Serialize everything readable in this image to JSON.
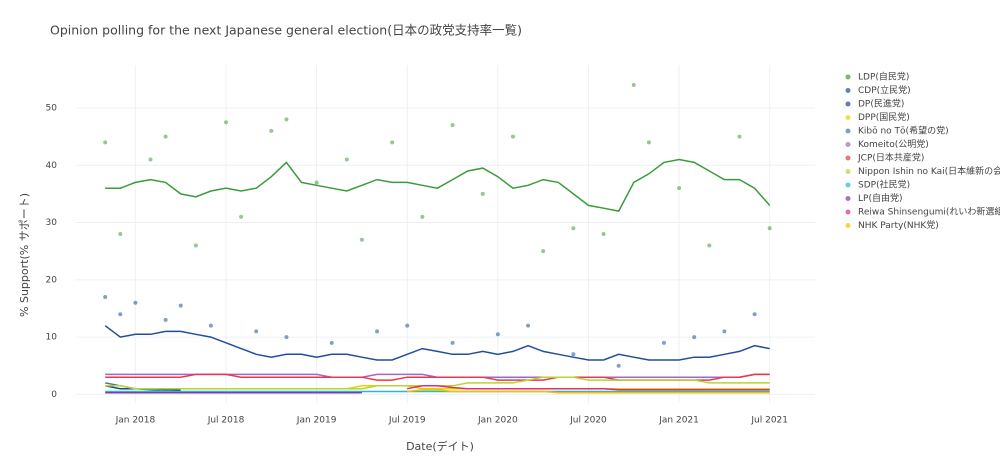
{
  "chart_data": {
    "type": "line",
    "title": "Opinion polling for the next Japanese general election(日本の政党支持率一覧)",
    "x_label": "Date(デイト)",
    "y_label": "% Support(% サポート)",
    "xlim": [
      "2017-09",
      "2021-10"
    ],
    "xticks": [
      {
        "value": "2018-01",
        "label": "Jan 2018"
      },
      {
        "value": "2018-07",
        "label": "Jul 2018"
      },
      {
        "value": "2019-01",
        "label": "Jan 2019"
      },
      {
        "value": "2019-07",
        "label": "Jul 2019"
      },
      {
        "value": "2020-01",
        "label": "Jan 2020"
      },
      {
        "value": "2020-07",
        "label": "Jul 2020"
      },
      {
        "value": "2021-01",
        "label": "Jan 2021"
      },
      {
        "value": "2021-07",
        "label": "Jul 2021"
      }
    ],
    "ylim": [
      -1.5,
      57.5
    ],
    "yticks": [
      0,
      10,
      20,
      30,
      40,
      50
    ],
    "grid": true,
    "legend": "right",
    "x": [
      "2017-11",
      "2017-12",
      "2018-01",
      "2018-02",
      "2018-03",
      "2018-04",
      "2018-05",
      "2018-06",
      "2018-07",
      "2018-08",
      "2018-09",
      "2018-10",
      "2018-11",
      "2018-12",
      "2019-01",
      "2019-02",
      "2019-03",
      "2019-04",
      "2019-05",
      "2019-06",
      "2019-07",
      "2019-08",
      "2019-09",
      "2019-10",
      "2019-11",
      "2019-12",
      "2020-01",
      "2020-02",
      "2020-03",
      "2020-04",
      "2020-05",
      "2020-06",
      "2020-07",
      "2020-08",
      "2020-09",
      "2020-10",
      "2020-11",
      "2020-12",
      "2021-01",
      "2021-02",
      "2021-03",
      "2021-04",
      "2021-05",
      "2021-06",
      "2021-07"
    ],
    "series": [
      {
        "name": "LDP(自民党)",
        "color": "#3a9b3a",
        "values": [
          36,
          36,
          37,
          37.5,
          37,
          35,
          34.5,
          35.5,
          36,
          35.5,
          36,
          38,
          40.5,
          37,
          36.5,
          36,
          35.5,
          36.5,
          37.5,
          37,
          37,
          36.5,
          36,
          37.5,
          39,
          39.5,
          38,
          36,
          36.5,
          37.5,
          37,
          35,
          33,
          32.5,
          32,
          37,
          38.5,
          40.5,
          41,
          40.5,
          39,
          37.5,
          37.5,
          36,
          33
        ],
        "points_x": [
          "2017-11",
          "2017-12",
          "2018-02",
          "2018-03",
          "2018-05",
          "2018-07",
          "2018-08",
          "2018-10",
          "2018-11",
          "2019-01",
          "2019-03",
          "2019-04",
          "2019-06",
          "2019-08",
          "2019-10",
          "2019-12",
          "2020-02",
          "2020-04",
          "2020-06",
          "2020-08",
          "2020-10",
          "2020-11",
          "2021-01",
          "2021-03",
          "2021-05",
          "2021-07"
        ],
        "points": [
          44,
          28,
          41,
          45,
          26,
          47.5,
          31,
          46,
          48,
          37,
          41,
          27,
          44,
          31,
          47,
          35,
          45,
          25,
          29,
          28,
          54,
          44,
          36,
          26,
          45,
          29
        ]
      },
      {
        "name": "CDP(立民党)",
        "color": "#1f4e9c",
        "values": [
          12,
          10,
          10.5,
          10.5,
          11,
          11,
          10.5,
          10,
          9,
          8,
          7,
          6.5,
          7,
          7,
          6.5,
          7,
          7,
          6.5,
          6,
          6,
          7,
          8,
          7.5,
          7,
          7,
          7.5,
          7,
          7.5,
          8.5,
          7.5,
          7,
          6.5,
          6,
          6,
          7,
          6.5,
          6,
          6,
          6,
          6.5,
          6.5,
          7,
          7.5,
          8.5,
          8
        ],
        "points_x": [
          "2017-11",
          "2017-12",
          "2018-01",
          "2018-03",
          "2018-04",
          "2018-06",
          "2018-09",
          "2018-11",
          "2019-02",
          "2019-05",
          "2019-07",
          "2019-10",
          "2020-01",
          "2020-03",
          "2020-06",
          "2020-09",
          "2020-12",
          "2021-02",
          "2021-04",
          "2021-06"
        ],
        "points": [
          17,
          14,
          16,
          13,
          15.5,
          12,
          11,
          10,
          9,
          11,
          12,
          9,
          10.5,
          12,
          7,
          5,
          9,
          10,
          11,
          14
        ]
      },
      {
        "name": "DP(民進党)",
        "color": "#2a3f8f",
        "values": [
          1.5,
          1,
          1,
          1,
          0.8,
          0.7,
          null,
          null,
          null,
          null,
          null,
          null,
          null,
          null,
          null,
          null,
          null,
          null,
          null,
          null,
          null,
          null,
          null,
          null,
          null,
          null,
          null,
          null,
          null,
          null,
          null,
          null,
          null,
          null,
          null,
          null,
          null,
          null,
          null,
          null,
          null,
          null,
          null,
          null,
          null
        ]
      },
      {
        "name": "DPP(国民党)",
        "color": "#e6d400",
        "values": [
          null,
          null,
          null,
          null,
          null,
          null,
          1,
          1,
          1,
          1,
          1,
          1,
          1,
          1,
          1,
          1,
          1,
          1.5,
          1.5,
          1.5,
          1.5,
          1,
          1,
          1,
          1,
          1,
          1,
          1,
          1,
          1,
          1,
          1,
          1,
          1,
          1,
          1,
          1,
          1,
          1,
          1,
          1,
          1,
          1,
          1,
          1
        ]
      },
      {
        "name": "Kibō no Tō(希望の党)",
        "color": "#4a78a8",
        "values": [
          2,
          1.5,
          1,
          0.8,
          0.5,
          0.3,
          null,
          null,
          null,
          null,
          null,
          null,
          null,
          null,
          null,
          null,
          null,
          null,
          null,
          null,
          null,
          null,
          null,
          null,
          null,
          null,
          null,
          null,
          null,
          null,
          null,
          null,
          null,
          null,
          null,
          null,
          null,
          null,
          null,
          null,
          null,
          null,
          null,
          null,
          null
        ]
      },
      {
        "name": "Komeito(公明党)",
        "color": "#a366c4",
        "values": [
          3.5,
          3.5,
          3.5,
          3.5,
          3.5,
          3.5,
          3.5,
          3.5,
          3.5,
          3.5,
          3.5,
          3.5,
          3.5,
          3.5,
          3.5,
          3,
          3,
          3,
          3.5,
          3.5,
          3.5,
          3.5,
          3,
          3,
          3,
          3,
          3,
          3,
          3,
          3,
          3,
          3,
          3,
          3,
          3,
          3,
          3,
          3,
          3,
          3,
          3,
          3,
          3,
          3.5,
          3.5
        ]
      },
      {
        "name": "JCP(日本共産党)",
        "color": "#e8384f",
        "values": [
          3,
          3,
          3,
          3,
          3,
          3,
          3.5,
          3.5,
          3.5,
          3,
          3,
          3,
          3,
          3,
          3,
          3,
          3,
          3,
          2.5,
          2.5,
          3,
          3,
          3,
          3,
          3,
          3,
          2.5,
          2.5,
          2.5,
          2.5,
          3,
          3,
          3,
          3,
          2.5,
          2.5,
          2.5,
          2.5,
          2.5,
          2.5,
          2.5,
          3,
          3,
          3.5,
          3.5
        ]
      },
      {
        "name": "Nippon Ishin no Kai(日本維新の会)",
        "color": "#b8d430",
        "values": [
          1.5,
          1.5,
          1,
          1,
          1,
          1,
          1,
          1,
          1,
          1,
          1,
          1,
          1,
          1,
          1,
          1,
          1,
          1,
          1.5,
          1.5,
          1.5,
          1.5,
          1.5,
          1.5,
          2,
          2,
          2,
          2,
          2.5,
          3,
          3,
          3,
          2.5,
          2.5,
          2.5,
          2.5,
          2.5,
          2.5,
          2.5,
          2.5,
          2,
          2,
          2,
          2,
          2
        ]
      },
      {
        "name": "SDP(社民党)",
        "color": "#29b6d9",
        "values": [
          0.5,
          0.5,
          0.5,
          0.5,
          0.5,
          0.5,
          0.5,
          0.5,
          0.5,
          0.5,
          0.5,
          0.5,
          0.5,
          0.5,
          0.5,
          0.5,
          0.5,
          0.5,
          0.5,
          0.5,
          0.5,
          0.5,
          0.5,
          0.5,
          0.5,
          0.5,
          0.5,
          0.5,
          0.5,
          0.5,
          0.5,
          0.5,
          0.5,
          0.5,
          0.5,
          0.5,
          0.5,
          0.5,
          0.5,
          0.5,
          0.5,
          0.5,
          0.5,
          0.5,
          0.5
        ]
      },
      {
        "name": "LP(自由党)",
        "color": "#7b3fa0",
        "values": [
          0.3,
          0.3,
          0.3,
          0.3,
          0.3,
          0.3,
          0.3,
          0.3,
          0.3,
          0.3,
          0.3,
          0.3,
          0.3,
          0.3,
          0.3,
          0.3,
          0.3,
          0.3,
          null,
          null,
          null,
          null,
          null,
          null,
          null,
          null,
          null,
          null,
          null,
          null,
          null,
          null,
          null,
          null,
          null,
          null,
          null,
          null,
          null,
          null,
          null,
          null,
          null,
          null,
          null
        ]
      },
      {
        "name": "Reiwa Shinsengumi(れいわ新選組)",
        "color": "#e0306a",
        "values": [
          null,
          null,
          null,
          null,
          null,
          null,
          null,
          null,
          null,
          null,
          null,
          null,
          null,
          null,
          null,
          null,
          null,
          null,
          null,
          null,
          1,
          1.5,
          1.5,
          1.2,
          1,
          1,
          1,
          1,
          1,
          1,
          1,
          1,
          1,
          1,
          0.8,
          0.8,
          0.8,
          0.8,
          0.8,
          0.8,
          0.8,
          0.8,
          0.8,
          0.8,
          0.8
        ]
      },
      {
        "name": "NHK Party(NHK党)",
        "color": "#f2c200",
        "values": [
          null,
          null,
          null,
          null,
          null,
          null,
          null,
          null,
          null,
          null,
          null,
          null,
          null,
          null,
          null,
          null,
          null,
          null,
          null,
          null,
          0.5,
          0.8,
          0.8,
          0.5,
          0.5,
          0.5,
          0.5,
          0.5,
          0.5,
          0.5,
          0.3,
          0.3,
          0.3,
          0.3,
          0.3,
          0.3,
          0.3,
          0.3,
          0.3,
          0.3,
          0.3,
          0.3,
          0.3,
          0.3,
          0.3
        ]
      }
    ]
  }
}
